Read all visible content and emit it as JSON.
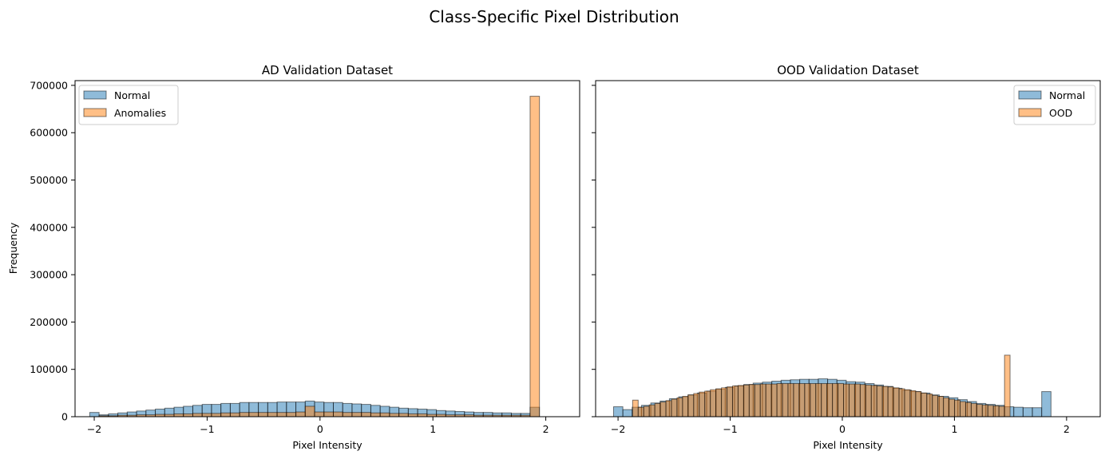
{
  "figure": {
    "suptitle": "Class-Specific Pixel Distribution"
  },
  "colors": {
    "normal": "#1f77b4",
    "class2": "#ff7f0e",
    "edge": "#000000"
  },
  "chart_data": [
    {
      "type": "bar",
      "title": "AD Validation Dataset",
      "xlabel": "Pixel Intensity",
      "ylabel": "Frequency",
      "xlim": [
        -2.17,
        2.3
      ],
      "ylim": [
        0,
        710000
      ],
      "xticks": [
        -2,
        -1,
        0,
        1,
        2
      ],
      "xtick_labels": [
        "−2",
        "−1",
        "0",
        "1",
        "2"
      ],
      "yticks": [
        0,
        100000,
        200000,
        300000,
        400000,
        500000,
        600000,
        700000
      ],
      "ytick_labels": [
        "0",
        "100000",
        "200000",
        "300000",
        "400000",
        "500000",
        "600000",
        "700000"
      ],
      "grid": false,
      "legend": {
        "placement": "upper-left",
        "entries": [
          "Normal",
          "Anomalies"
        ]
      },
      "bins": {
        "start": -2.04,
        "width": 0.083
      },
      "series": [
        {
          "name": "Normal",
          "color": "#1f77b4",
          "values": [
            9000,
            4000,
            6000,
            8000,
            10000,
            12000,
            14000,
            16000,
            18000,
            20000,
            22000,
            24000,
            26000,
            26000,
            28000,
            28000,
            30000,
            30000,
            30000,
            30000,
            31000,
            31000,
            31000,
            33000,
            31000,
            30000,
            30000,
            28000,
            27000,
            26000,
            24000,
            22000,
            20000,
            18000,
            17000,
            16000,
            15000,
            13000,
            12000,
            11000,
            10000,
            9000,
            9000,
            8000,
            8000,
            7000,
            7000,
            20000
          ]
        },
        {
          "name": "Anomalies",
          "color": "#ff7f0e",
          "values": [
            0,
            2000,
            2000,
            3000,
            3000,
            4000,
            4000,
            5000,
            5000,
            6000,
            6000,
            7000,
            7000,
            7000,
            8000,
            8000,
            9000,
            9000,
            9000,
            9000,
            9000,
            9000,
            10000,
            22000,
            10000,
            10000,
            10000,
            9000,
            9000,
            9000,
            8000,
            8000,
            7000,
            7000,
            6000,
            6000,
            5000,
            5000,
            4000,
            4000,
            4000,
            3000,
            3000,
            3000,
            3000,
            3000,
            3000,
            677000
          ]
        }
      ]
    },
    {
      "type": "bar",
      "title": "OOD Validation Dataset",
      "xlabel": "Pixel Intensity",
      "ylabel": "",
      "xlim": [
        -2.2,
        2.3
      ],
      "ylim": [
        0,
        710000
      ],
      "xticks": [
        -2,
        -1,
        0,
        1,
        2
      ],
      "xtick_labels": [
        "−2",
        "−1",
        "0",
        "1",
        "2"
      ],
      "grid": false,
      "legend": {
        "placement": "upper-right",
        "entries": [
          "Normal",
          "OOD"
        ]
      },
      "series": [
        {
          "name": "Normal",
          "color": "#1f77b4",
          "bins": {
            "start": -2.04,
            "width": 0.083
          },
          "values": [
            21000,
            15000,
            20000,
            24000,
            29000,
            33000,
            38000,
            42000,
            46000,
            50000,
            54000,
            58000,
            62000,
            65000,
            68000,
            71000,
            73000,
            75000,
            77000,
            78000,
            79000,
            79000,
            80000,
            79000,
            77000,
            74000,
            73000,
            70000,
            67000,
            64000,
            60000,
            56000,
            53000,
            50000,
            46000,
            43000,
            40000,
            36000,
            32000,
            28000,
            26000,
            24000,
            21000,
            20000,
            19000,
            19000,
            53000
          ]
        },
        {
          "name": "OOD",
          "color": "#ff7f0e",
          "bins": {
            "start": -1.87,
            "width": 0.0495
          },
          "values": [
            35000,
            20000,
            22000,
            25000,
            28000,
            31000,
            34000,
            37000,
            40000,
            43000,
            46000,
            49000,
            52000,
            54000,
            57000,
            59000,
            61000,
            63000,
            65000,
            66000,
            67000,
            68000,
            68000,
            69000,
            69000,
            69000,
            70000,
            70000,
            70000,
            70000,
            70000,
            70000,
            70000,
            70000,
            70000,
            70000,
            70000,
            70000,
            69000,
            69000,
            69000,
            68000,
            67000,
            66000,
            65000,
            64000,
            63000,
            61000,
            59000,
            57000,
            55000,
            53000,
            50000,
            48000,
            45000,
            43000,
            40000,
            37000,
            35000,
            32000,
            30000,
            28000,
            26000,
            25000,
            24000,
            23000,
            22000,
            130000
          ]
        }
      ]
    }
  ]
}
